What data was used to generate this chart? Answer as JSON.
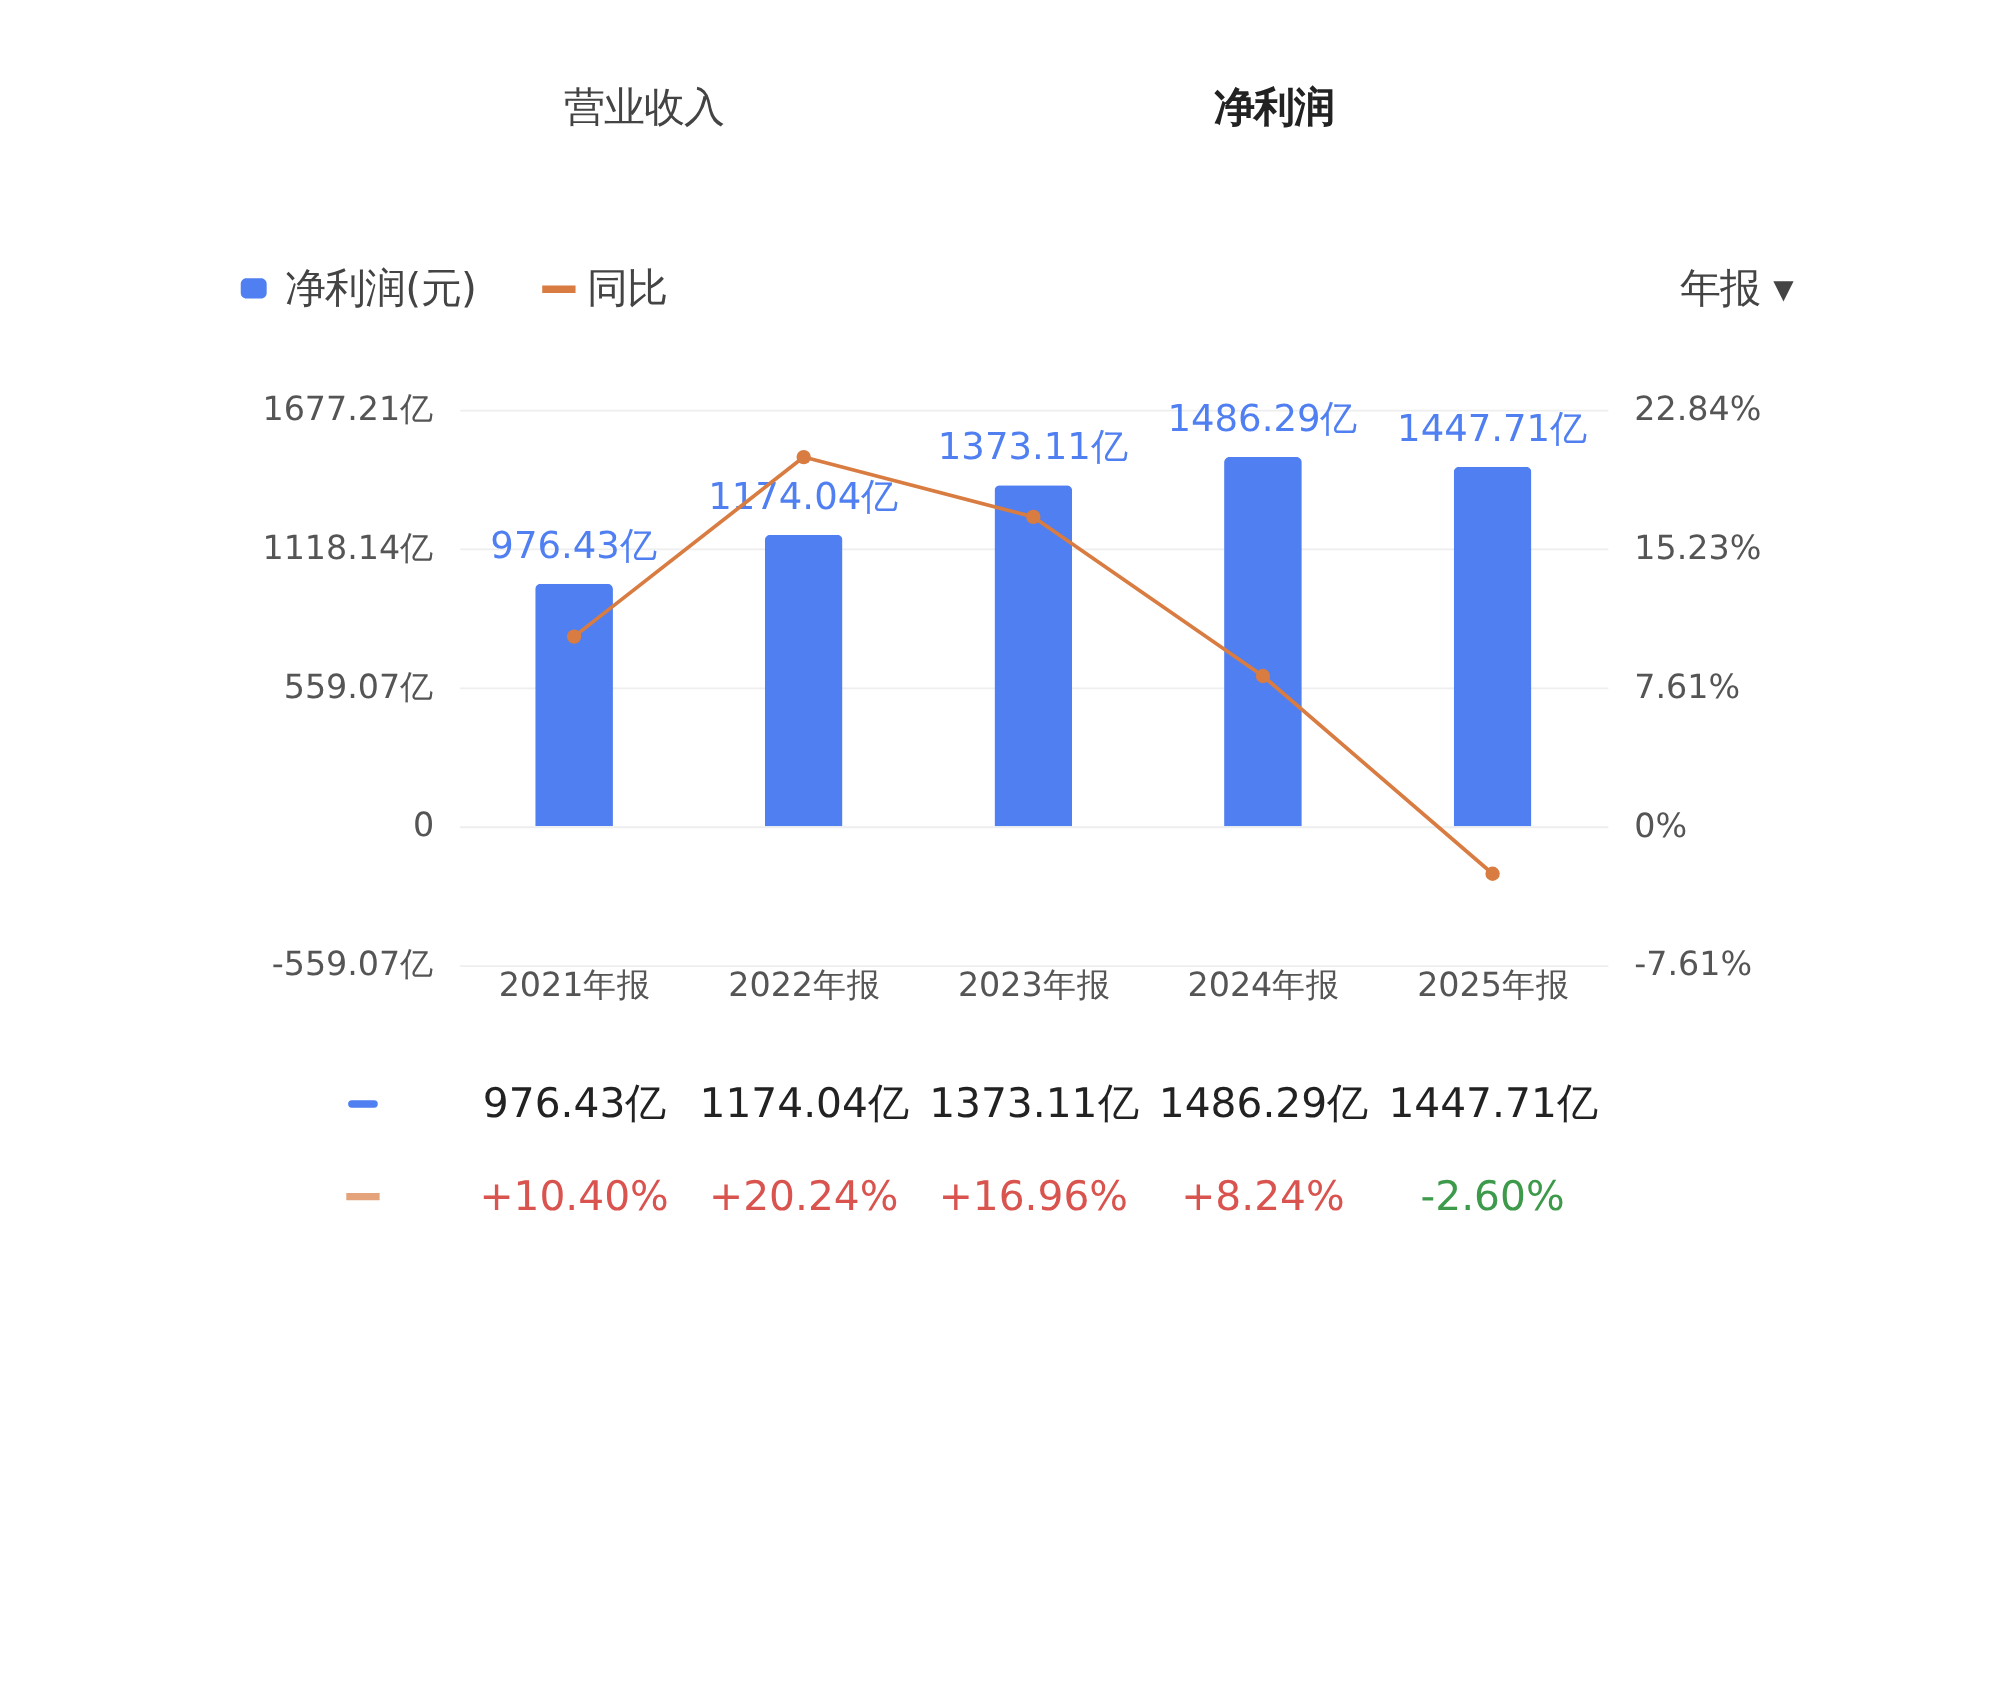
{
  "chart_data": {
    "type": "bar",
    "categories": [
      "2021年报",
      "2022年报",
      "2023年报",
      "2024年报",
      "2025年报"
    ],
    "series": [
      {
        "name": "净利润(元)",
        "type": "bar",
        "color": "#4f7ff0",
        "values": [
          976.43,
          1174.04,
          1373.11,
          1486.29,
          1447.71
        ],
        "value_labels": [
          "976.43亿",
          "1174.04亿",
          "1373.11亿",
          "1486.29亿",
          "1447.71亿"
        ]
      },
      {
        "name": "同比",
        "type": "line",
        "axis": "y2",
        "color": "#d97c41",
        "values": [
          10.4,
          20.24,
          16.96,
          8.24,
          -2.6
        ],
        "value_labels": [
          "+10.40%",
          "+20.24%",
          "+16.96%",
          "+8.24%",
          "-2.60%"
        ]
      }
    ],
    "ylim": [
      -559.07,
      1677.21
    ],
    "yticks": [
      {
        "value": -559.07,
        "label": "-559.07亿"
      },
      0,
      {
        "value": 559.07,
        "label": "559.07亿"
      },
      {
        "value": 1118.14,
        "label": "1118.14亿"
      },
      {
        "value": 1677.21,
        "label": "1677.21亿"
      }
    ],
    "y2lim": [
      -7.61,
      22.84
    ],
    "y2ticks": [
      {
        "value": -7.61,
        "label": "-7.61%"
      },
      {
        "value": 0,
        "label": "0%"
      },
      {
        "value": 7.61,
        "label": "7.61%"
      },
      {
        "value": 15.23,
        "label": "15.23%"
      },
      {
        "value": 22.84,
        "label": "22.84%"
      }
    ],
    "annotations": [
      "营业收入",
      "净利润",
      "年报 ▾"
    ],
    "grid": "y",
    "legend": "top left",
    "marker": "circle",
    "line_style": "solid"
  }
}
